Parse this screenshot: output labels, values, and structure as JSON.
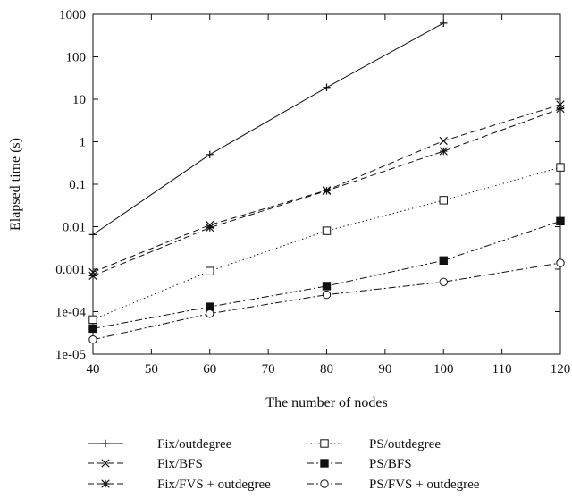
{
  "chart_data": {
    "type": "line",
    "xlabel": "The number of nodes",
    "ylabel": "Elapsed time (s)",
    "xlim": [
      40,
      120
    ],
    "ylim": [
      1e-05,
      1000
    ],
    "yscale": "log",
    "x_ticks": [
      40,
      50,
      60,
      70,
      80,
      90,
      100,
      110,
      120
    ],
    "y_ticks": [
      {
        "value": 1e-05,
        "label": "1e-05"
      },
      {
        "value": 0.0001,
        "label": "1e-04"
      },
      {
        "value": 0.001,
        "label": "0.001"
      },
      {
        "value": 0.01,
        "label": "0.01"
      },
      {
        "value": 0.1,
        "label": "0.1"
      },
      {
        "value": 1,
        "label": "1"
      },
      {
        "value": 10,
        "label": "10"
      },
      {
        "value": 100,
        "label": "100"
      },
      {
        "value": 1000,
        "label": "1000"
      }
    ],
    "grid": false,
    "legend_position": "bottom",
    "series": [
      {
        "name": "Fix/outdegree",
        "marker": "plus",
        "dash": "solid",
        "fill": "none",
        "points": [
          [
            40,
            0.0065
          ],
          [
            60,
            0.5
          ],
          [
            80,
            19
          ],
          [
            100,
            620
          ]
        ]
      },
      {
        "name": "Fix/BFS",
        "marker": "cross",
        "dash": "dashed",
        "fill": "none",
        "points": [
          [
            40,
            0.00085
          ],
          [
            60,
            0.011
          ],
          [
            80,
            0.072
          ],
          [
            100,
            1.05
          ],
          [
            120,
            7.5
          ]
        ]
      },
      {
        "name": "Fix/FVS + outdegree",
        "marker": "asterisk",
        "dash": "dashed",
        "fill": "none",
        "points": [
          [
            40,
            0.0007
          ],
          [
            60,
            0.0095
          ],
          [
            80,
            0.07
          ],
          [
            100,
            0.6
          ],
          [
            120,
            6
          ]
        ]
      },
      {
        "name": "PS/outdegree",
        "marker": "square",
        "dash": "dotted",
        "fill": "open",
        "points": [
          [
            40,
            6.5e-05
          ],
          [
            60,
            0.0009
          ],
          [
            80,
            0.008
          ],
          [
            100,
            0.042
          ],
          [
            120,
            0.25
          ]
        ]
      },
      {
        "name": "PS/BFS",
        "marker": "square",
        "dash": "dashdot",
        "fill": "filled",
        "points": [
          [
            40,
            4e-05
          ],
          [
            60,
            0.00013
          ],
          [
            80,
            0.0004
          ],
          [
            100,
            0.0016
          ],
          [
            120,
            0.0135
          ]
        ]
      },
      {
        "name": "PS/FVS + outdegree",
        "marker": "circle",
        "dash": "dashdot",
        "fill": "open",
        "points": [
          [
            40,
            2.2e-05
          ],
          [
            60,
            9e-05
          ],
          [
            80,
            0.00025
          ],
          [
            100,
            0.0005
          ],
          [
            120,
            0.0014
          ]
        ]
      }
    ]
  }
}
